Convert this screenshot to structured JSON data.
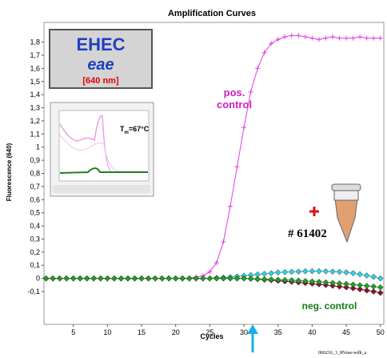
{
  "chart_data": {
    "type": "line",
    "title": "Amplification Curves",
    "xlabel": "Cycles",
    "ylabel": "Fluorescence (640)",
    "x": [
      1,
      2,
      3,
      4,
      5,
      6,
      7,
      8,
      9,
      10,
      11,
      12,
      13,
      14,
      15,
      16,
      17,
      18,
      19,
      20,
      21,
      22,
      23,
      24,
      25,
      26,
      27,
      28,
      29,
      30,
      31,
      32,
      33,
      34,
      35,
      36,
      37,
      38,
      39,
      40,
      41,
      42,
      43,
      44,
      45,
      46,
      47,
      48,
      49,
      50
    ],
    "xlim": [
      0.7,
      50.5
    ],
    "xticks": [
      5,
      10,
      15,
      20,
      25,
      30,
      35,
      40,
      45,
      50
    ],
    "ylim": [
      -0.35,
      1.95
    ],
    "yticks": [
      {
        "value": -0.1,
        "label": "-0,1"
      },
      0,
      {
        "value": 0.1,
        "label": "0,1"
      },
      {
        "value": 0.2,
        "label": "0,2"
      },
      {
        "value": 0.3,
        "label": "0,3"
      },
      {
        "value": 0.4,
        "label": "0,4"
      },
      {
        "value": 0.5,
        "label": "0,5"
      },
      {
        "value": 0.6,
        "label": "0,6"
      },
      {
        "value": 0.7,
        "label": "0,7"
      },
      {
        "value": 0.8,
        "label": "0,8"
      },
      {
        "value": 0.9,
        "label": "0,9"
      },
      1,
      {
        "value": 1.1,
        "label": "1,1"
      },
      {
        "value": 1.2,
        "label": "1,2"
      },
      {
        "value": 1.3,
        "label": "1,3"
      },
      {
        "value": 1.4,
        "label": "1,4"
      },
      {
        "value": 1.5,
        "label": "1,5"
      },
      {
        "value": 1.6,
        "label": "1,6"
      },
      {
        "value": 1.7,
        "label": "1,7"
      },
      {
        "value": 1.8,
        "label": "1,8"
      }
    ],
    "grid": false,
    "series": [
      {
        "name": "pos. control",
        "color": "#e040e0",
        "marker": "plus",
        "values": [
          0,
          0,
          0,
          0,
          0,
          0,
          0,
          0,
          0,
          0,
          0,
          0,
          0,
          0,
          0,
          0,
          0,
          0,
          0,
          0,
          0,
          0,
          0.01,
          0.02,
          0.05,
          0.12,
          0.28,
          0.55,
          0.85,
          1.15,
          1.42,
          1.6,
          1.72,
          1.79,
          1.82,
          1.84,
          1.85,
          1.85,
          1.84,
          1.83,
          1.82,
          1.83,
          1.84,
          1.83,
          1.83,
          1.83,
          1.84,
          1.83,
          1.83,
          1.83
        ]
      },
      {
        "color": "#30d0e0",
        "marker": "diamond",
        "values": [
          0,
          0,
          0,
          0,
          0,
          0,
          0,
          0,
          0,
          0,
          0,
          0,
          0,
          0,
          0,
          0,
          0,
          0,
          0,
          0,
          0,
          0,
          0,
          0,
          0,
          0.003,
          0.006,
          0.01,
          0.015,
          0.02,
          0.025,
          0.03,
          0.035,
          0.04,
          0.045,
          0.048,
          0.05,
          0.052,
          0.054,
          0.055,
          0.055,
          0.054,
          0.052,
          0.05,
          0.046,
          0.04,
          0.032,
          0.022,
          0.012,
          0
        ]
      },
      {
        "color": "#8b1030",
        "marker": "diamond",
        "values": [
          0,
          0,
          0,
          0,
          0,
          0,
          0,
          0,
          0,
          0,
          0,
          0,
          0,
          0,
          0,
          0,
          0,
          0,
          0,
          0,
          0,
          0,
          0,
          0,
          0,
          0,
          0,
          0,
          0,
          0,
          -0.003,
          -0.006,
          -0.01,
          -0.014,
          -0.018,
          -0.022,
          -0.026,
          -0.03,
          -0.035,
          -0.04,
          -0.045,
          -0.05,
          -0.056,
          -0.062,
          -0.068,
          -0.075,
          -0.083,
          -0.092,
          -0.1,
          -0.11
        ]
      },
      {
        "name": "neg. control",
        "color": "#20a020",
        "marker": "diamond",
        "values": [
          0,
          0,
          0,
          0,
          0,
          0,
          0,
          0,
          0,
          0,
          0,
          0,
          0,
          0,
          0,
          0,
          0,
          0,
          0,
          0,
          0,
          0,
          0,
          0,
          0,
          0,
          0,
          0,
          0,
          0,
          -0.002,
          -0.004,
          -0.006,
          -0.008,
          -0.01,
          -0.012,
          -0.014,
          -0.017,
          -0.02,
          -0.023,
          -0.026,
          -0.03,
          -0.034,
          -0.038,
          -0.042,
          -0.047,
          -0.052,
          -0.057,
          -0.062,
          -0.068
        ]
      }
    ],
    "annotations": {
      "organism": "EHEC",
      "gene": "eae",
      "channel": "[640 nm]",
      "tm": {
        "main": "T",
        "sub": "m",
        "rest": "=67°C"
      },
      "sample": "# 61402",
      "file": "060216_3_RVeae-wdh_a"
    }
  }
}
